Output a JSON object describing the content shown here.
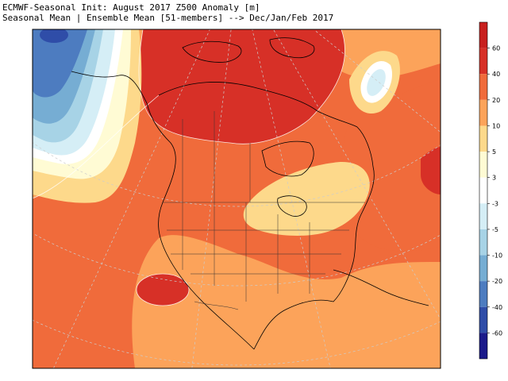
{
  "title": {
    "line1": "ECMWF-Seasonal Init: August 2017 Z500 Anomaly [m]",
    "line2": "Seasonal Mean | Ensemble Mean [51-members] --> Dec/Jan/Feb 2017"
  },
  "colorbar": {
    "bins": [
      {
        "label": "60",
        "color": "#d73027"
      },
      {
        "label": "40",
        "color": "#f06b3b"
      },
      {
        "label": "20",
        "color": "#fca35a"
      },
      {
        "label": "10",
        "color": "#fdd98b"
      },
      {
        "label": "5",
        "color": "#fffbd4"
      },
      {
        "label": "3",
        "color": "#ffffff"
      },
      {
        "label": "-3",
        "color": "#d5eef6"
      },
      {
        "label": "-5",
        "color": "#a7d3e6"
      },
      {
        "label": "-10",
        "color": "#76add3"
      },
      {
        "label": "-20",
        "color": "#4d7cc0"
      },
      {
        "label": "-40",
        "color": "#2f4da8"
      },
      {
        "label": "-60",
        "color": "#1b1a8a"
      }
    ],
    "top_color": "#c8201e"
  },
  "map": {
    "region": "North America",
    "projection": "polar stereographic",
    "variable": "Z500 anomaly",
    "features": [
      "positive-anomaly-core-canada",
      "positive-anomaly-core-southwest-us",
      "positive-anomaly-core-atlantic",
      "negative-anomaly-alaska-pacific",
      "negative-anomaly-davis-strait",
      "weak-anomaly-great-lakes"
    ]
  }
}
